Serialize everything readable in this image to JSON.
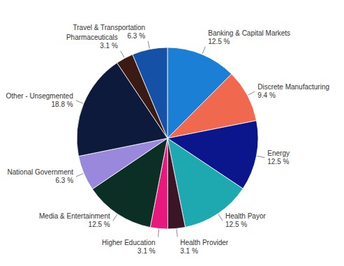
{
  "chart_data": {
    "type": "pie",
    "categories": [
      "Banking & Capital Markets",
      "Discrete Manufacturing",
      "Energy",
      "Health Payor",
      "Health Provider",
      "Higher Education",
      "Media & Entertainment",
      "National Government",
      "Other - Unsegmented",
      "Pharmaceuticals",
      "Travel & Transportation"
    ],
    "values": [
      12.5,
      9.4,
      12.5,
      12.5,
      3.1,
      3.1,
      12.5,
      6.3,
      18.8,
      3.1,
      6.3
    ],
    "value_labels": [
      "12.5 %",
      "9.4 %",
      "12.5 %",
      "12.5 %",
      "3.1 %",
      "3.1 %",
      "12.5 %",
      "6.3 %",
      "18.8 %",
      "3.1 %",
      "6.3 %"
    ],
    "colors": [
      "#1b7fd6",
      "#f0694f",
      "#0b168c",
      "#1ea8b0",
      "#3b1526",
      "#e8197c",
      "#0b2e25",
      "#9a88dd",
      "#0d1a3b",
      "#3a1a12",
      "#1651a8"
    ],
    "data_labels": true
  }
}
